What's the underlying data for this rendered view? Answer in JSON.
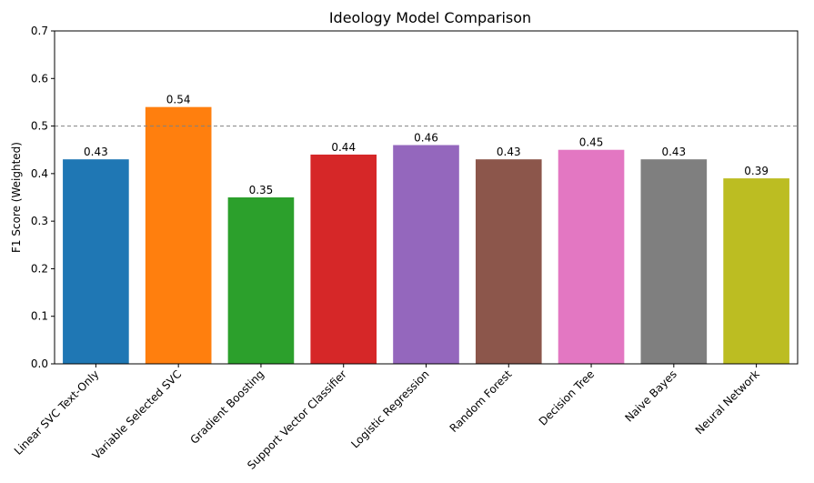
{
  "chart_data": {
    "type": "bar",
    "title": "Ideology Model Comparison",
    "xlabel": "",
    "ylabel": "F1 Score (Weighted)",
    "ylim": [
      0,
      0.7
    ],
    "yticks": [
      "0.0",
      "0.1",
      "0.2",
      "0.3",
      "0.4",
      "0.5",
      "0.6",
      "0.7"
    ],
    "categories": [
      "Linear SVC Text-Only",
      "Variable Selected SVC",
      "Gradient Boosting",
      "Support Vector Classifier",
      "Logistic Regression",
      "Random Forest",
      "Decision Tree",
      "Naive Bayes",
      "Neural Network"
    ],
    "values": [
      0.43,
      0.54,
      0.35,
      0.44,
      0.46,
      0.43,
      0.45,
      0.43,
      0.39
    ],
    "value_labels": [
      "0.43",
      "0.54",
      "0.35",
      "0.44",
      "0.46",
      "0.43",
      "0.45",
      "0.43",
      "0.39"
    ],
    "colors": [
      "#1f77b4",
      "#ff7f0e",
      "#2ca02c",
      "#d62728",
      "#9467bd",
      "#8c564b",
      "#e377c2",
      "#7f7f7f",
      "#bcbd22"
    ],
    "reference_line": {
      "y": 0.5,
      "style": "dashed",
      "color": "#808080"
    },
    "grid": false
  }
}
